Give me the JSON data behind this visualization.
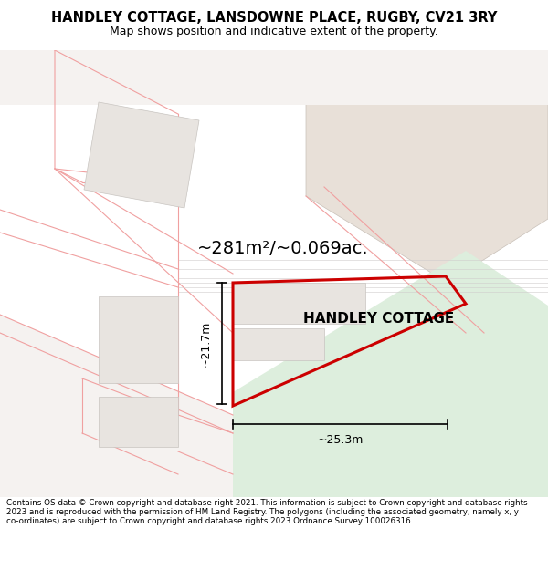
{
  "title_line1": "HANDLEY COTTAGE, LANSDOWNE PLACE, RUGBY, CV21 3RY",
  "title_line2": "Map shows position and indicative extent of the property.",
  "footer": "Contains OS data © Crown copyright and database right 2021. This information is subject to Crown copyright and database rights 2023 and is reproduced with the permission of HM Land Registry. The polygons (including the associated geometry, namely x, y co-ordinates) are subject to Crown copyright and database rights 2023 Ordnance Survey 100026316.",
  "area_label": "~281m²/~0.069ac.",
  "dim_height_label": "~21.7m",
  "dim_width_label": "~25.3m",
  "property_label": "HANDLEY COTTAGE",
  "bg_color": "#ffffff",
  "map_bg": "#ffffff",
  "green_fill": "#ddeedd",
  "property_stroke": "#cc0000",
  "building_fill": "#e8e4e0",
  "building_edge": "#c8c4c0",
  "tan_fill": "#e8e0d8",
  "plot_line_color": "#f0a0a0",
  "road_line_color": "#d0cccc",
  "figsize": [
    6.0,
    6.25
  ],
  "dpi": 100,
  "title_fontsize": 10.5,
  "subtitle_fontsize": 9.0,
  "area_fontsize": 14,
  "label_fontsize": 11,
  "dim_fontsize": 9,
  "footer_fontsize": 6.3
}
